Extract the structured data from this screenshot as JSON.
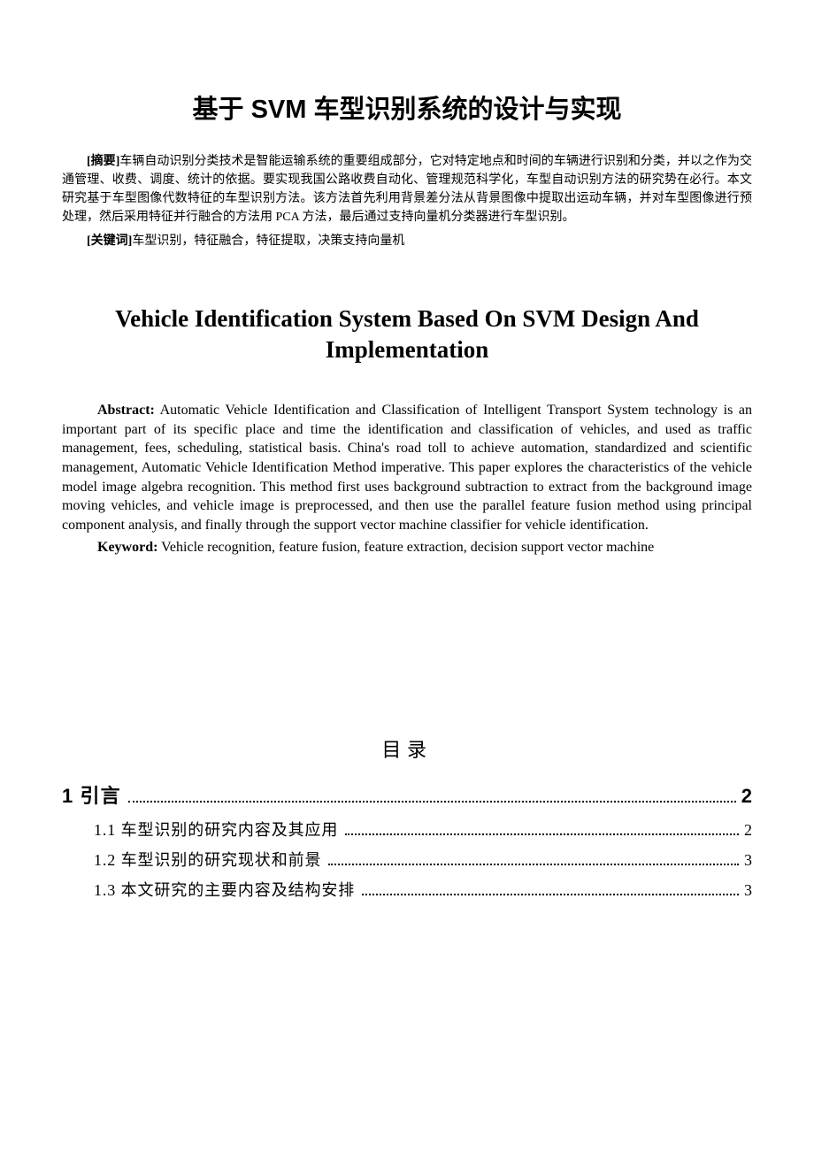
{
  "title_cn": "基于 SVM 车型识别系统的设计与实现",
  "abstract_cn_label": "[摘要]",
  "abstract_cn_text": "车辆自动识别分类技术是智能运输系统的重要组成部分，它对特定地点和时间的车辆进行识别和分类，并以之作为交通管理、收费、调度、统计的依据。要实现我国公路收费自动化、管理规范科学化，车型自动识别方法的研究势在必行。本文研究基于车型图像代数特征的车型识别方法。该方法首先利用背景差分法从背景图像中提取出运动车辆，并对车型图像进行预处理，然后采用特征并行融合的方法用 PCA 方法，最后通过支持向量机分类器进行车型识别。",
  "keywords_cn_label": "[关键词]",
  "keywords_cn_text": "车型识别，特征融合，特征提取，决策支持向量机",
  "title_en": "Vehicle Identification System Based On SVM Design And Implementation",
  "abstract_en_label": "Abstract:",
  "abstract_en_text": " Automatic Vehicle Identification and Classification of Intelligent Transport System technology is an important part of its specific place and time the identification and classification of vehicles, and used as traffic management, fees, scheduling, statistical basis. China's road toll to achieve automation, standardized and scientific management, Automatic Vehicle Identification Method imperative. This paper explores the characteristics of the vehicle model image algebra recognition. This method first uses background subtraction to extract from the background image moving vehicles, and vehicle image is preprocessed, and then use the parallel feature fusion method using principal component analysis, and finally through the support vector machine classifier for vehicle identification.",
  "keywords_en_label": "Keyword:",
  "keywords_en_text": " Vehicle recognition, feature fusion, feature extraction, decision support vector machine",
  "toc_title": "目录",
  "toc": [
    {
      "level": 1,
      "label": "1 引言",
      "page": "2"
    },
    {
      "level": 2,
      "label": "1.1 车型识别的研究内容及其应用",
      "page": "2"
    },
    {
      "level": 2,
      "label": "1.2 车型识别的研究现状和前景",
      "page": "3"
    },
    {
      "level": 2,
      "label": "1.3 本文研究的主要内容及结构安排",
      "page": "3"
    }
  ],
  "colors": {
    "background": "#ffffff",
    "text": "#000000"
  },
  "typography": {
    "title_cn_fontsize": 29,
    "title_en_fontsize": 27,
    "body_cn_fontsize": 14,
    "body_en_fontsize": 16,
    "toc_title_fontsize": 22,
    "toc_main_fontsize": 22,
    "toc_sub_fontsize": 18
  }
}
